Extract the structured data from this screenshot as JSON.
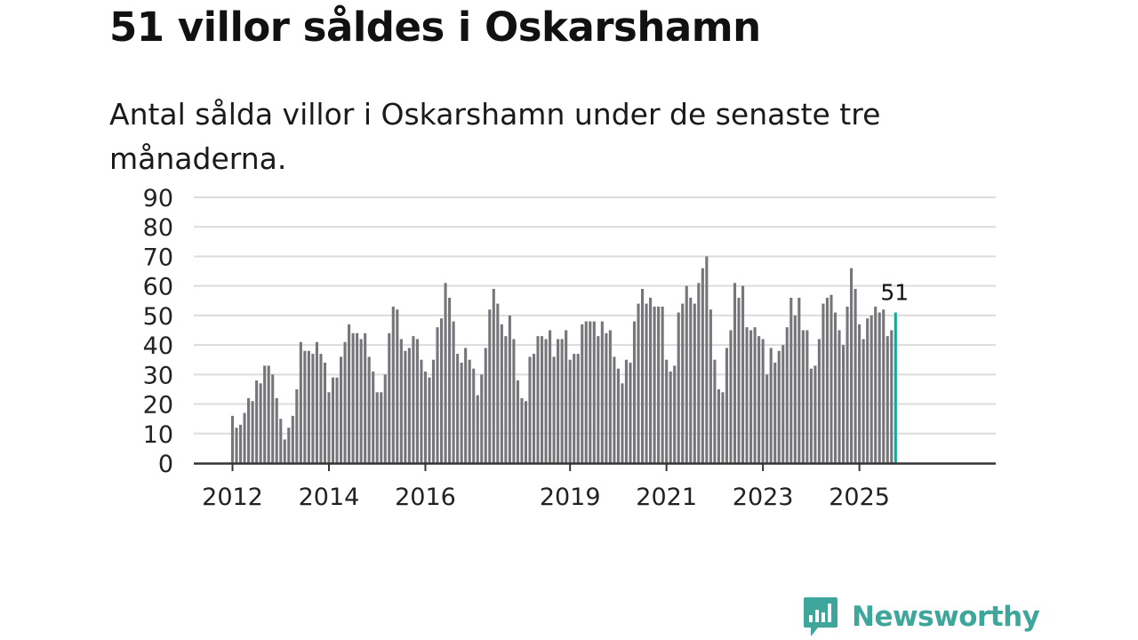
{
  "title": "51 villor såldes i Oskarshamn",
  "subtitle": "Antal sålda villor i Oskarshamn under de senaste tre månaderna.",
  "brand": {
    "name": "Newsworthy",
    "icon": "newsworthy-logo-icon",
    "color": "#3fa69c"
  },
  "chart_data": {
    "type": "bar",
    "title": "51 villor såldes i Oskarshamn",
    "xlabel": "",
    "ylabel": "",
    "ylim": [
      0,
      90
    ],
    "yticks": [
      "0",
      "10",
      "20",
      "30",
      "40",
      "50",
      "60",
      "70",
      "80",
      "90"
    ],
    "xtick_labels": [
      {
        "label": "2012",
        "index": 0
      },
      {
        "label": "2014",
        "index": 24
      },
      {
        "label": "2016",
        "index": 48
      },
      {
        "label": "2019",
        "index": 84
      },
      {
        "label": "2021",
        "index": 108
      },
      {
        "label": "2023",
        "index": 132
      },
      {
        "label": "2025",
        "index": 156
      }
    ],
    "values": [
      16,
      12,
      13,
      17,
      22,
      21,
      28,
      27,
      33,
      33,
      30,
      22,
      15,
      8,
      12,
      16,
      25,
      41,
      38,
      38,
      37,
      41,
      37,
      34,
      24,
      29,
      29,
      36,
      41,
      47,
      44,
      44,
      42,
      44,
      36,
      31,
      24,
      24,
      30,
      44,
      53,
      52,
      42,
      38,
      39,
      43,
      42,
      35,
      31,
      29,
      35,
      46,
      49,
      61,
      56,
      48,
      37,
      34,
      39,
      35,
      32,
      23,
      30,
      39,
      52,
      59,
      54,
      47,
      43,
      50,
      42,
      28,
      22,
      21,
      36,
      37,
      43,
      43,
      42,
      45,
      36,
      42,
      42,
      45,
      35,
      37,
      37,
      47,
      48,
      48,
      48,
      43,
      48,
      44,
      45,
      36,
      32,
      27,
      35,
      34,
      48,
      54,
      59,
      54,
      56,
      53,
      53,
      53,
      35,
      31,
      33,
      51,
      54,
      60,
      56,
      54,
      61,
      66,
      70,
      52,
      35,
      25,
      24,
      39,
      45,
      61,
      56,
      60,
      46,
      45,
      46,
      43,
      42,
      30,
      39,
      34,
      38,
      40,
      46,
      56,
      50,
      56,
      45,
      45,
      32,
      33,
      42,
      54,
      56,
      57,
      51,
      45,
      40,
      53,
      66,
      59,
      47,
      42,
      49,
      50,
      53,
      51,
      52,
      43,
      45,
      51
    ],
    "bar_color": "#76757a",
    "highlight": {
      "index": 165,
      "value": 51,
      "label": "51",
      "color": "#1aa59b"
    }
  }
}
